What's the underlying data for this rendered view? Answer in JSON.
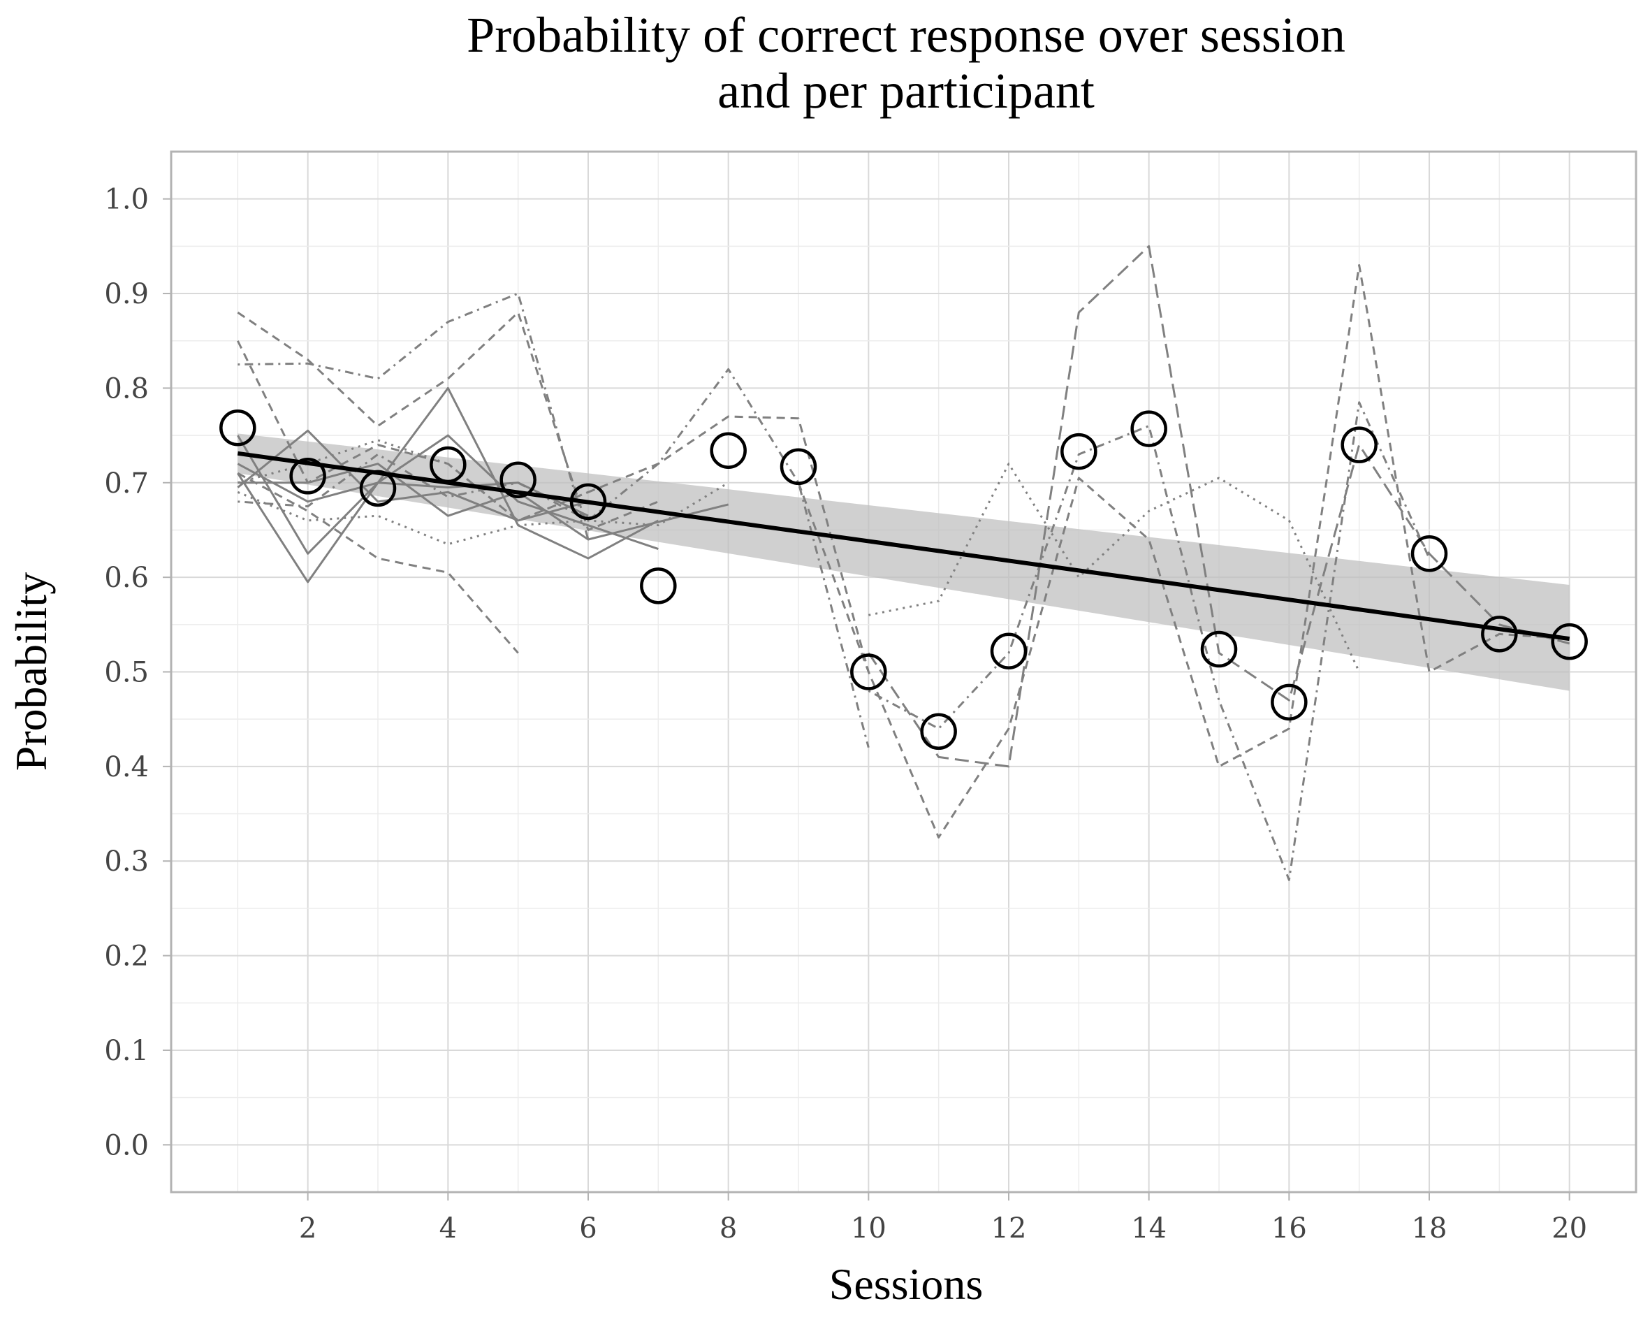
{
  "chart_data": {
    "type": "line",
    "title": "Probability of correct response over session\nand per participant",
    "xlabel": "Sessions",
    "ylabel": "Probability",
    "xlim": [
      0.05,
      20.95
    ],
    "ylim": [
      -0.05,
      1.05
    ],
    "x_ticks": [
      2,
      4,
      6,
      8,
      10,
      12,
      14,
      16,
      18,
      20
    ],
    "y_ticks": [
      0.0,
      0.1,
      0.2,
      0.3,
      0.4,
      0.5,
      0.6,
      0.7,
      0.8,
      0.9,
      1.0
    ],
    "y_tick_labels": [
      "0.0",
      "0.1",
      "0.2",
      "0.3",
      "0.4",
      "0.5",
      "0.6",
      "0.7",
      "0.8",
      "0.9",
      "1.0"
    ],
    "grid": true,
    "legend": "none",
    "mean_points": {
      "x": [
        1,
        2,
        3,
        4,
        5,
        6,
        7,
        8,
        9,
        10,
        11,
        12,
        13,
        14,
        15,
        16,
        17,
        18,
        19,
        20
      ],
      "y": [
        0.758,
        0.707,
        0.694,
        0.719,
        0.703,
        0.68,
        0.591,
        0.734,
        0.717,
        0.5,
        0.437,
        0.522,
        0.733,
        0.757,
        0.524,
        0.468,
        0.74,
        0.625,
        0.54,
        0.532
      ]
    },
    "regression": {
      "x": [
        1,
        20
      ],
      "y": [
        0.731,
        0.535
      ],
      "ci_lower": [
        0.71,
        0.48
      ],
      "ci_upper": [
        0.752,
        0.592
      ]
    },
    "participants": [
      {
        "linetype": "solid",
        "x": [
          1,
          2,
          3,
          4,
          5,
          6,
          7
        ],
        "y": [
          0.71,
          0.595,
          0.7,
          0.8,
          0.655,
          0.62,
          0.66
        ]
      },
      {
        "linetype": "solid",
        "x": [
          1,
          2,
          3,
          4,
          5,
          6,
          7
        ],
        "y": [
          0.75,
          0.625,
          0.7,
          0.75,
          0.68,
          0.655,
          0.63
        ]
      },
      {
        "linetype": "solid",
        "x": [
          1,
          2,
          3,
          4,
          5,
          6,
          8
        ],
        "y": [
          0.7,
          0.7,
          0.72,
          0.665,
          0.69,
          0.64,
          0.677
        ]
      },
      {
        "linetype": "solid",
        "x": [
          1,
          2,
          3,
          4,
          5,
          6
        ],
        "y": [
          0.695,
          0.755,
          0.68,
          0.69,
          0.66,
          0.68
        ]
      },
      {
        "linetype": "solid",
        "x": [
          1,
          2,
          3,
          4,
          5,
          6
        ],
        "y": [
          0.72,
          0.68,
          0.7,
          0.695,
          0.7,
          0.665
        ]
      },
      {
        "linetype": "dashed",
        "x": [
          1,
          2,
          3,
          4,
          5,
          6,
          7
        ],
        "y": [
          0.88,
          0.83,
          0.76,
          0.81,
          0.88,
          0.65,
          0.68
        ]
      },
      {
        "linetype": "dashed",
        "x": [
          1,
          2,
          3,
          4,
          5
        ],
        "y": [
          0.71,
          0.67,
          0.62,
          0.605,
          0.52
        ]
      },
      {
        "linetype": "dashed",
        "x": [
          1,
          2,
          3,
          4,
          5,
          6,
          7,
          8,
          9,
          10
        ],
        "y": [
          0.85,
          0.7,
          0.74,
          0.72,
          0.66,
          0.69,
          0.72,
          0.77,
          0.768,
          0.5
        ]
      },
      {
        "linetype": "dotdash",
        "x": [
          1,
          2,
          3,
          4,
          5,
          6
        ],
        "y": [
          0.825,
          0.826,
          0.81,
          0.87,
          0.9,
          0.64
        ]
      },
      {
        "linetype": "dotdash",
        "x": [
          1,
          2,
          3,
          4,
          5,
          6,
          7,
          8,
          9,
          10
        ],
        "y": [
          0.68,
          0.675,
          0.73,
          0.685,
          0.7,
          0.66,
          0.72,
          0.82,
          0.7,
          0.42
        ]
      },
      {
        "linetype": "dotted",
        "x": [
          1,
          2,
          3,
          4,
          5,
          6
        ],
        "y": [
          0.7,
          0.72,
          0.745,
          0.72,
          0.66,
          0.69
        ]
      },
      {
        "linetype": "dotted",
        "x": [
          1,
          2,
          3,
          4,
          5,
          6,
          7,
          8
        ],
        "y": [
          0.69,
          0.66,
          0.665,
          0.635,
          0.655,
          0.66,
          0.655,
          0.7
        ]
      },
      {
        "linetype": "dashed",
        "x": [
          9,
          10,
          11,
          12,
          13,
          14,
          15,
          16,
          17,
          18,
          19,
          20
        ],
        "y": [
          0.7,
          0.5,
          0.325,
          0.44,
          0.705,
          0.64,
          0.4,
          0.44,
          0.93,
          0.5,
          0.54,
          0.535
        ]
      },
      {
        "linetype": "longdash",
        "x": [
          10,
          11,
          12,
          13,
          14,
          15,
          16,
          17,
          18,
          19,
          20
        ],
        "y": [
          0.52,
          0.41,
          0.4,
          0.88,
          0.95,
          0.52,
          0.47,
          0.74,
          0.625,
          0.55,
          0.53
        ]
      },
      {
        "linetype": "dotted",
        "x": [
          10,
          11,
          12,
          13,
          14,
          15,
          16,
          17
        ],
        "y": [
          0.56,
          0.575,
          0.72,
          0.6,
          0.67,
          0.705,
          0.66,
          0.5
        ]
      },
      {
        "linetype": "dotdash",
        "x": [
          10,
          11,
          12,
          13,
          14,
          15,
          16,
          17,
          18
        ],
        "y": [
          0.48,
          0.44,
          0.52,
          0.73,
          0.76,
          0.47,
          0.28,
          0.785,
          0.62
        ]
      }
    ]
  },
  "colors": {
    "background": "#ffffff",
    "panel_border": "#b3b3b3",
    "grid_major": "#d9d9d9",
    "grid_minor": "#ececec",
    "participant_lines": "#808080",
    "regression_line": "#000000",
    "ci_ribbon": "#bebebe",
    "points_stroke": "#000000"
  }
}
